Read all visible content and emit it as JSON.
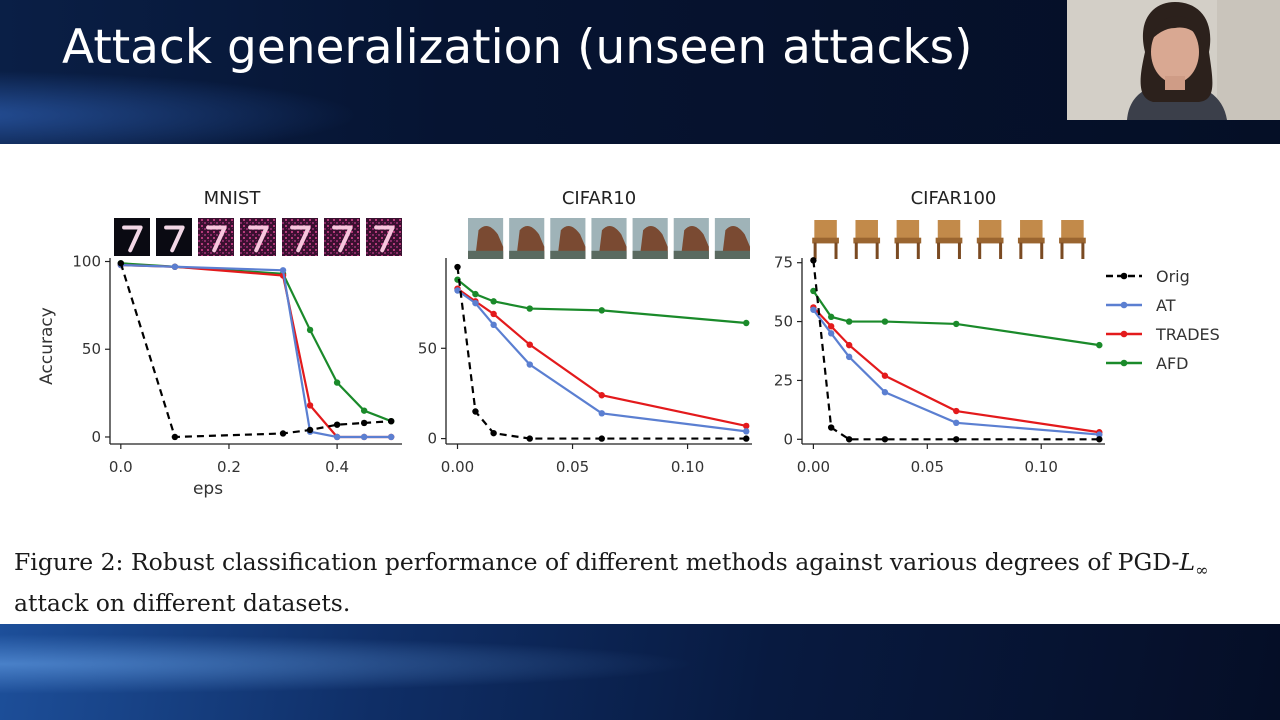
{
  "slide": {
    "title": "Attack generalization (unseen attacks)"
  },
  "caption": {
    "text": "Figure 2: Robust classification performance of different methods against various degrees of PGD-",
    "math_symbol": "L",
    "math_subscript": "∞",
    "text_tail": "attack on different datasets."
  },
  "legend": [
    {
      "name": "Orig",
      "color": "#000000",
      "dashed": true
    },
    {
      "name": "AT",
      "color": "#5b7fd1",
      "dashed": false
    },
    {
      "name": "TRADES",
      "color": "#e31a1c",
      "dashed": false
    },
    {
      "name": "AFD",
      "color": "#1a8a2a",
      "dashed": false
    }
  ],
  "chart_data": [
    {
      "type": "line",
      "title": "MNIST",
      "xlabel": "eps",
      "ylabel": "Accuracy",
      "xlim": [
        -0.02,
        0.52
      ],
      "ylim": [
        -4,
        102
      ],
      "xticks": [
        0.0,
        0.2,
        0.4
      ],
      "xtick_labels": [
        "0.0",
        "0.2",
        "0.4"
      ],
      "yticks": [
        0,
        50,
        100
      ],
      "ytick_labels": [
        "0",
        "50",
        "100"
      ],
      "thumbnails": "digit-7",
      "series": [
        {
          "name": "Orig",
          "x": [
            0.0,
            0.1,
            0.3,
            0.35,
            0.4,
            0.45,
            0.5
          ],
          "y": [
            99,
            0,
            2,
            4,
            7,
            8,
            9
          ]
        },
        {
          "name": "AT",
          "x": [
            0.0,
            0.1,
            0.3,
            0.35,
            0.4,
            0.45,
            0.5
          ],
          "y": [
            98,
            97,
            95,
            3,
            0,
            0,
            0
          ]
        },
        {
          "name": "TRADES",
          "x": [
            0.0,
            0.1,
            0.3,
            0.35,
            0.4,
            0.45,
            0.5
          ],
          "y": [
            98,
            97,
            92,
            18,
            0,
            0,
            0
          ]
        },
        {
          "name": "AFD",
          "x": [
            0.0,
            0.1,
            0.3,
            0.35,
            0.4,
            0.45,
            0.5
          ],
          "y": [
            99,
            97,
            93,
            61,
            31,
            15,
            9
          ]
        }
      ]
    },
    {
      "type": "line",
      "title": "CIFAR10",
      "xlabel": "",
      "ylabel": "",
      "xlim": [
        -0.005,
        0.128
      ],
      "ylim": [
        -3,
        100
      ],
      "xticks": [
        0.0,
        0.05,
        0.1
      ],
      "xtick_labels": [
        "0.00",
        "0.05",
        "0.10"
      ],
      "yticks": [
        0,
        50
      ],
      "ytick_labels": [
        "0",
        "50"
      ],
      "thumbnails": "horse",
      "series": [
        {
          "name": "Orig",
          "x": [
            0.0,
            0.0078,
            0.0157,
            0.0314,
            0.0627,
            0.1255
          ],
          "y": [
            95,
            15,
            3,
            0,
            0,
            0
          ]
        },
        {
          "name": "AT",
          "x": [
            0.0,
            0.0078,
            0.0157,
            0.0314,
            0.0627,
            0.1255
          ],
          "y": [
            82,
            75,
            63,
            41,
            14,
            4
          ]
        },
        {
          "name": "TRADES",
          "x": [
            0.0,
            0.0078,
            0.0157,
            0.0314,
            0.0627,
            0.1255
          ],
          "y": [
            83,
            76,
            69,
            52,
            24,
            7
          ]
        },
        {
          "name": "AFD",
          "x": [
            0.0,
            0.0078,
            0.0157,
            0.0314,
            0.0627,
            0.1255
          ],
          "y": [
            88,
            80,
            76,
            72,
            71,
            64
          ]
        }
      ]
    },
    {
      "type": "line",
      "title": "CIFAR100",
      "xlabel": "",
      "ylabel": "",
      "xlim": [
        -0.005,
        0.128
      ],
      "ylim": [
        -2,
        77
      ],
      "xticks": [
        0.0,
        0.05,
        0.1
      ],
      "xtick_labels": [
        "0.00",
        "0.05",
        "0.10"
      ],
      "yticks": [
        0,
        25,
        50,
        75
      ],
      "ytick_labels": [
        "0",
        "25",
        "50",
        "75"
      ],
      "thumbnails": "chair",
      "series": [
        {
          "name": "Orig",
          "x": [
            0.0,
            0.0078,
            0.0157,
            0.0314,
            0.0627,
            0.1255
          ],
          "y": [
            76,
            5,
            0,
            0,
            0,
            0
          ]
        },
        {
          "name": "AT",
          "x": [
            0.0,
            0.0078,
            0.0157,
            0.0314,
            0.0627,
            0.1255
          ],
          "y": [
            55,
            45,
            35,
            20,
            7,
            2
          ]
        },
        {
          "name": "TRADES",
          "x": [
            0.0,
            0.0078,
            0.0157,
            0.0314,
            0.0627,
            0.1255
          ],
          "y": [
            56,
            48,
            40,
            27,
            12,
            3
          ]
        },
        {
          "name": "AFD",
          "x": [
            0.0,
            0.0078,
            0.0157,
            0.0314,
            0.0627,
            0.1255
          ],
          "y": [
            63,
            52,
            50,
            50,
            49,
            40
          ]
        }
      ]
    }
  ]
}
